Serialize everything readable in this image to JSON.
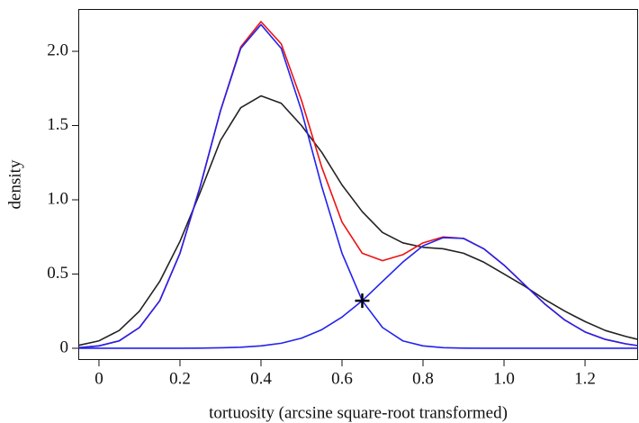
{
  "chart_data": {
    "type": "line",
    "xlabel": "tortuosity (arcsine square-root transformed)",
    "ylabel": "density",
    "x": [
      -0.05,
      0,
      0.05,
      0.1,
      0.15,
      0.2,
      0.25,
      0.3,
      0.35,
      0.4,
      0.45,
      0.5,
      0.55,
      0.6,
      0.65,
      0.7,
      0.75,
      0.8,
      0.85,
      0.9,
      0.95,
      1.0,
      1.05,
      1.1,
      1.15,
      1.2,
      1.25,
      1.3,
      1.33
    ],
    "series": [
      {
        "color": "#222222",
        "values": [
          0.02,
          0.05,
          0.12,
          0.25,
          0.45,
          0.72,
          1.05,
          1.4,
          1.62,
          1.7,
          1.65,
          1.5,
          1.32,
          1.1,
          0.92,
          0.78,
          0.71,
          0.68,
          0.67,
          0.64,
          0.58,
          0.5,
          0.42,
          0.33,
          0.25,
          0.18,
          0.12,
          0.08,
          0.06
        ]
      },
      {
        "color": "#ee1111",
        "values": [
          0.004,
          0.016,
          0.05,
          0.14,
          0.32,
          0.64,
          1.09,
          1.6,
          2.03,
          2.2,
          2.05,
          1.67,
          1.22,
          0.85,
          0.64,
          0.59,
          0.63,
          0.71,
          0.75,
          0.74,
          0.67,
          0.56,
          0.43,
          0.3,
          0.19,
          0.11,
          0.06,
          0.03,
          0.018
        ]
      },
      {
        "color": "#2222ee",
        "values": [
          0.004,
          0.016,
          0.05,
          0.14,
          0.32,
          0.64,
          1.09,
          1.6,
          2.02,
          2.18,
          2.02,
          1.6,
          1.09,
          0.64,
          0.32,
          0.14,
          0.05,
          0.016,
          0.004,
          0.001,
          0,
          0,
          0,
          0,
          0,
          0,
          0,
          0,
          0
        ]
      },
      {
        "color": "#2222ee",
        "values": [
          0,
          0,
          0,
          0,
          0,
          0,
          0.001,
          0.003,
          0.007,
          0.016,
          0.034,
          0.068,
          0.125,
          0.21,
          0.32,
          0.45,
          0.58,
          0.69,
          0.745,
          0.74,
          0.67,
          0.56,
          0.43,
          0.3,
          0.19,
          0.11,
          0.06,
          0.03,
          0.018
        ]
      }
    ],
    "marker": {
      "x": 0.65,
      "y": 0.32,
      "color": "#000000"
    },
    "xlim": [
      -0.051,
      1.331
    ],
    "ylim": [
      -0.079,
      2.285
    ],
    "xticks": [
      0,
      0.2,
      0.4,
      0.6,
      0.8,
      {
        "value": 1,
        "label": "1.0"
      },
      1.2
    ],
    "yticks": [
      0,
      0.5,
      {
        "value": 1,
        "label": "1.0"
      },
      1.5,
      {
        "value": 2,
        "label": "2.0"
      }
    ],
    "grid": false
  }
}
